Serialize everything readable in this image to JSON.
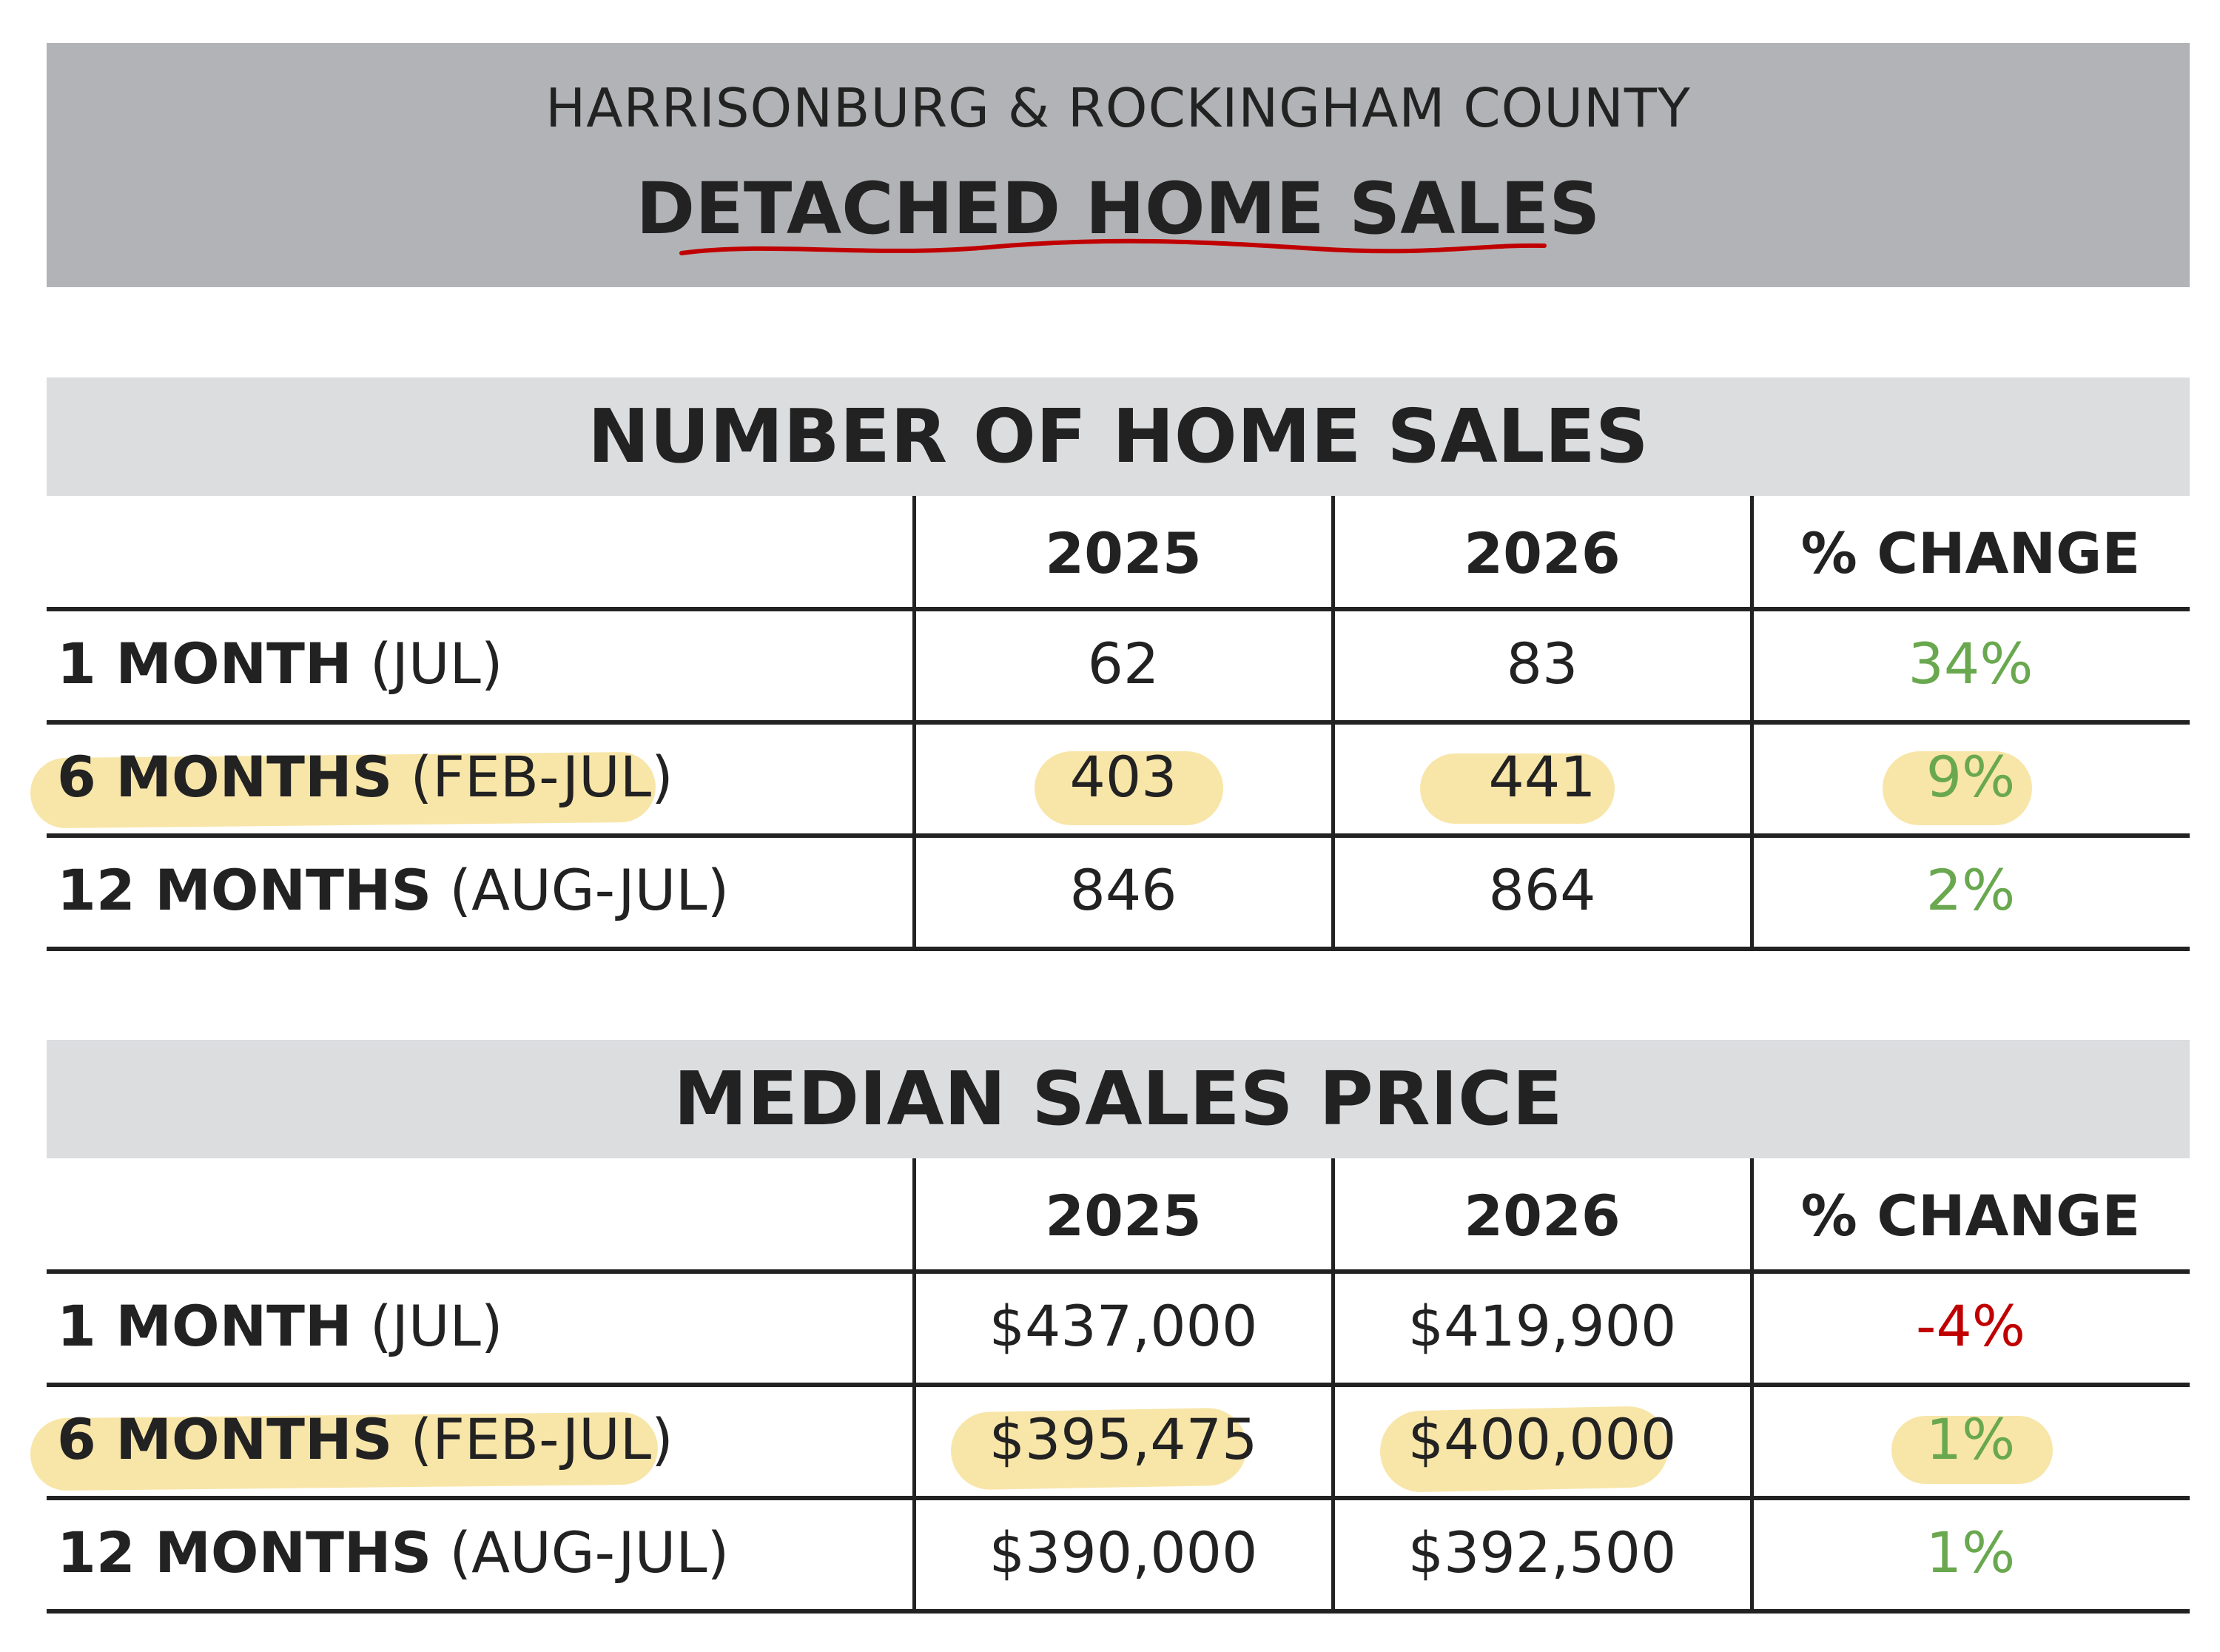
{
  "header": {
    "subtitle": "HARRISONBURG & ROCKINGHAM COUNTY",
    "title": "DETACHED HOME SALES"
  },
  "colors": {
    "positive": "#6aa84f",
    "negative": "#c00000",
    "highlight": "#f7e29a",
    "underline": "#c00000"
  },
  "chart_data": [
    {
      "type": "table",
      "title": "NUMBER OF HOME SALES",
      "columns": [
        "",
        "2025",
        "2026",
        "% CHANGE"
      ],
      "rows": [
        {
          "period": "1 MONTH",
          "range": "(JUL)",
          "v2025": "62",
          "v2026": "83",
          "change": "34%",
          "highlighted": false
        },
        {
          "period": "6 MONTHS",
          "range": "(FEB-JUL)",
          "v2025": "403",
          "v2026": "441",
          "change": "9%",
          "highlighted": true
        },
        {
          "period": "12 MONTHS",
          "range": "(AUG-JUL)",
          "v2025": "846",
          "v2026": "864",
          "change": "2%",
          "highlighted": false
        }
      ]
    },
    {
      "type": "table",
      "title": "MEDIAN SALES PRICE",
      "columns": [
        "",
        "2025",
        "2026",
        "% CHANGE"
      ],
      "rows": [
        {
          "period": "1 MONTH",
          "range": "(JUL)",
          "v2025": "$437,000",
          "v2026": "$419,900",
          "change": "-4%",
          "highlighted": false
        },
        {
          "period": "6 MONTHS",
          "range": "(FEB-JUL)",
          "v2025": "$395,475",
          "v2026": "$400,000",
          "change": "1%",
          "highlighted": true
        },
        {
          "period": "12 MONTHS",
          "range": "(AUG-JUL)",
          "v2025": "$390,000",
          "v2026": "$392,500",
          "change": "1%",
          "highlighted": false
        }
      ]
    }
  ]
}
